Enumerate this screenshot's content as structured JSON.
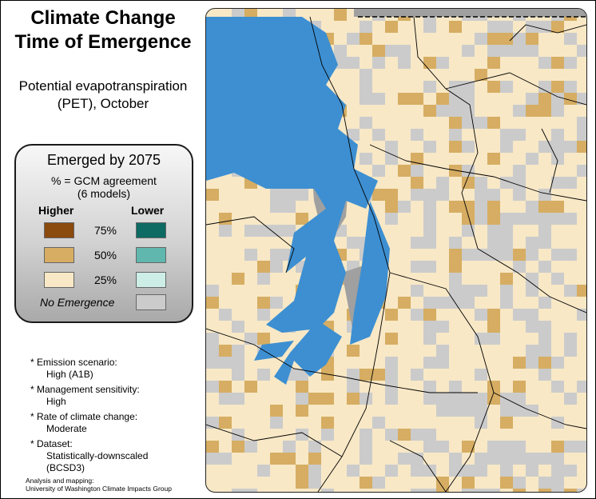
{
  "title_line1": "Climate Change",
  "title_line2": "Time of Emergence",
  "subtitle_line1": "Potential evapotranspiration",
  "subtitle_line2": "(PET), October",
  "legend": {
    "heading": "Emerged by 2075",
    "sub_line1": "% = GCM agreement",
    "sub_line2": "(6 models)",
    "higher_label": "Higher",
    "lower_label": "Lower",
    "rows": [
      {
        "pct": "75%",
        "higher_color": "#8b4a0e",
        "lower_color": "#0d6b63"
      },
      {
        "pct": "50%",
        "higher_color": "#d6ad62",
        "lower_color": "#5fb7ad"
      },
      {
        "pct": "25%",
        "higher_color": "#f8e8c6",
        "lower_color": "#cdeee6"
      }
    ],
    "no_emergence_label": "No Emergence",
    "no_emergence_color": "#cbcbcb"
  },
  "notes": [
    {
      "label": "Emission scenario:",
      "value": "High (A1B)"
    },
    {
      "label": "Management sensitivity:",
      "value": "High"
    },
    {
      "label": "Rate of climate change:",
      "value": "Moderate"
    },
    {
      "label": "Dataset:",
      "value": "Statistically-downscaled",
      "value2": "(BCSD3)"
    }
  ],
  "credit_line1": "Analysis and mapping:",
  "credit_line2": "University of Washington Climate Impacts Group",
  "map_colors": {
    "water": "#3d8fd1",
    "no_data": "#a0a0a0",
    "grey": "#cbcbcb",
    "tan": "#d6ad62",
    "cream": "#f8e8c6"
  }
}
